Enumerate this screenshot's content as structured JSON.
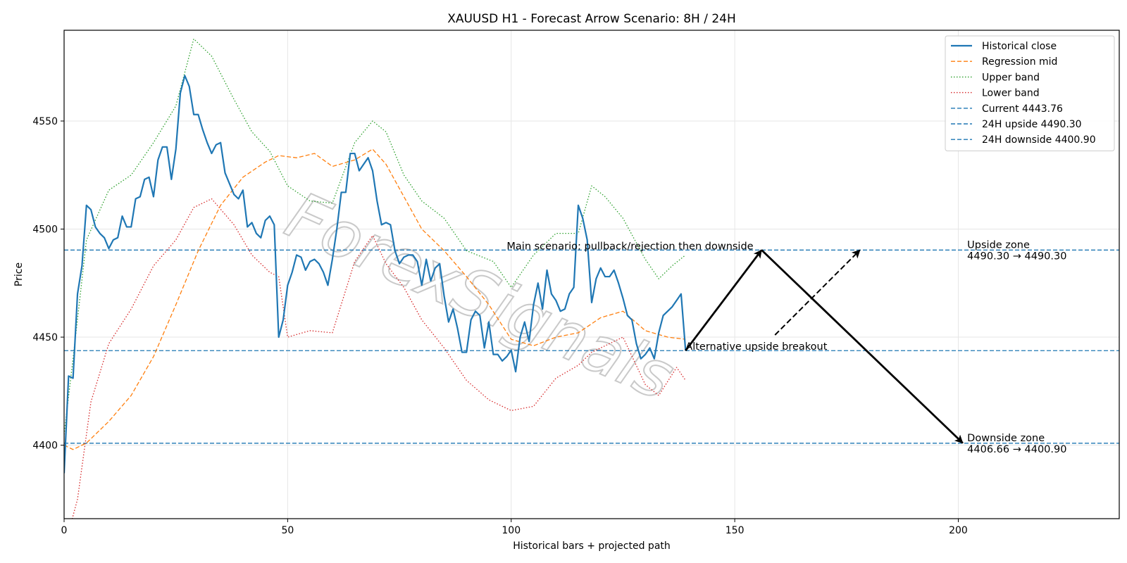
{
  "chart_data": {
    "type": "line",
    "title": "XAUUSD H1 - Forecast Arrow Scenario: 8H / 24H",
    "xlabel": "Historical bars + projected path",
    "ylabel": "Price",
    "xlim": [
      0,
      236
    ],
    "ylim": [
      4366,
      4592
    ],
    "xticks": [
      0,
      50,
      100,
      150,
      200
    ],
    "yticks": [
      4400,
      4450,
      4500,
      4550
    ],
    "grid": true,
    "legend_position": "top-right",
    "series": [
      {
        "name": "Historical close",
        "color": "#1f77b4",
        "style": "solid",
        "points": [
          [
            0,
            4387
          ],
          [
            1,
            4432
          ],
          [
            2,
            4431
          ],
          [
            3,
            4470
          ],
          [
            4,
            4483
          ],
          [
            5,
            4511
          ],
          [
            6,
            4509
          ],
          [
            7,
            4501
          ],
          [
            8,
            4498
          ],
          [
            9,
            4496
          ],
          [
            10,
            4491
          ],
          [
            11,
            4495
          ],
          [
            12,
            4496
          ],
          [
            13,
            4506
          ],
          [
            14,
            4501
          ],
          [
            15,
            4501
          ],
          [
            16,
            4514
          ],
          [
            17,
            4515
          ],
          [
            18,
            4523
          ],
          [
            19,
            4524
          ],
          [
            20,
            4515
          ],
          [
            21,
            4532
          ],
          [
            22,
            4538
          ],
          [
            23,
            4538
          ],
          [
            24,
            4523
          ],
          [
            25,
            4537
          ],
          [
            26,
            4563
          ],
          [
            27,
            4571
          ],
          [
            28,
            4566
          ],
          [
            29,
            4553
          ],
          [
            30,
            4553
          ],
          [
            31,
            4546
          ],
          [
            32,
            4540
          ],
          [
            33,
            4535
          ],
          [
            34,
            4539
          ],
          [
            35,
            4540
          ],
          [
            36,
            4526
          ],
          [
            37,
            4521
          ],
          [
            38,
            4516
          ],
          [
            39,
            4514
          ],
          [
            40,
            4518
          ],
          [
            41,
            4501
          ],
          [
            42,
            4503
          ],
          [
            43,
            4498
          ],
          [
            44,
            4496
          ],
          [
            45,
            4504
          ],
          [
            46,
            4506
          ],
          [
            47,
            4502
          ],
          [
            48,
            4450
          ],
          [
            49,
            4458
          ],
          [
            50,
            4474
          ],
          [
            51,
            4480
          ],
          [
            52,
            4488
          ],
          [
            53,
            4487
          ],
          [
            54,
            4481
          ],
          [
            55,
            4485
          ],
          [
            56,
            4486
          ],
          [
            57,
            4484
          ],
          [
            58,
            4480
          ],
          [
            59,
            4474
          ],
          [
            60,
            4486
          ],
          [
            61,
            4500
          ],
          [
            62,
            4517
          ],
          [
            63,
            4517
          ],
          [
            64,
            4535
          ],
          [
            65,
            4535
          ],
          [
            66,
            4527
          ],
          [
            67,
            4530
          ],
          [
            68,
            4533
          ],
          [
            69,
            4527
          ],
          [
            70,
            4513
          ],
          [
            71,
            4502
          ],
          [
            72,
            4503
          ],
          [
            73,
            4502
          ],
          [
            74,
            4490
          ],
          [
            75,
            4484
          ],
          [
            76,
            4487
          ],
          [
            77,
            4488
          ],
          [
            78,
            4488
          ],
          [
            79,
            4485
          ],
          [
            80,
            4474
          ],
          [
            81,
            4486
          ],
          [
            82,
            4476
          ],
          [
            83,
            4482
          ],
          [
            84,
            4484
          ],
          [
            85,
            4469
          ],
          [
            86,
            4457
          ],
          [
            87,
            4463
          ],
          [
            88,
            4454
          ],
          [
            89,
            4443
          ],
          [
            90,
            4443
          ],
          [
            91,
            4458
          ],
          [
            92,
            4462
          ],
          [
            93,
            4460
          ],
          [
            94,
            4445
          ],
          [
            95,
            4457
          ],
          [
            96,
            4442
          ],
          [
            97,
            4442
          ],
          [
            98,
            4439
          ],
          [
            99,
            4441
          ],
          [
            100,
            4444
          ],
          [
            101,
            4434
          ],
          [
            102,
            4450
          ],
          [
            103,
            4457
          ],
          [
            104,
            4448
          ],
          [
            105,
            4465
          ],
          [
            106,
            4475
          ],
          [
            107,
            4463
          ],
          [
            108,
            4481
          ],
          [
            109,
            4470
          ],
          [
            110,
            4467
          ],
          [
            111,
            4462
          ],
          [
            112,
            4463
          ],
          [
            113,
            4470
          ],
          [
            114,
            4473
          ],
          [
            115,
            4511
          ],
          [
            116,
            4505
          ],
          [
            117,
            4495
          ],
          [
            118,
            4466
          ],
          [
            119,
            4477
          ],
          [
            120,
            4482
          ],
          [
            121,
            4478
          ],
          [
            122,
            4478
          ],
          [
            123,
            4481
          ],
          [
            124,
            4475
          ],
          [
            125,
            4468
          ],
          [
            126,
            4460
          ],
          [
            127,
            4458
          ],
          [
            128,
            4447
          ],
          [
            129,
            4440
          ],
          [
            130,
            4442
          ],
          [
            131,
            4445
          ],
          [
            132,
            4440
          ],
          [
            133,
            4452
          ],
          [
            134,
            4460
          ],
          [
            135,
            4462
          ],
          [
            136,
            4464
          ],
          [
            137,
            4467
          ],
          [
            138,
            4470
          ],
          [
            139,
            4443.76
          ]
        ]
      },
      {
        "name": "Regression mid",
        "color": "#ff7f0e",
        "style": "dashed",
        "points": [
          [
            0,
            4400
          ],
          [
            2,
            4398
          ],
          [
            5,
            4401
          ],
          [
            10,
            4411
          ],
          [
            15,
            4423
          ],
          [
            20,
            4441
          ],
          [
            25,
            4465
          ],
          [
            30,
            4490
          ],
          [
            35,
            4511
          ],
          [
            40,
            4524
          ],
          [
            45,
            4531
          ],
          [
            48,
            4534
          ],
          [
            52,
            4533
          ],
          [
            56,
            4535
          ],
          [
            60,
            4529
          ],
          [
            65,
            4532
          ],
          [
            69,
            4537
          ],
          [
            72,
            4530
          ],
          [
            76,
            4515
          ],
          [
            80,
            4500
          ],
          [
            85,
            4490
          ],
          [
            90,
            4478
          ],
          [
            95,
            4465
          ],
          [
            100,
            4449
          ],
          [
            105,
            4446
          ],
          [
            110,
            4450
          ],
          [
            115,
            4452
          ],
          [
            120,
            4459
          ],
          [
            125,
            4462
          ],
          [
            130,
            4453
          ],
          [
            135,
            4450
          ],
          [
            139,
            4449
          ]
        ]
      },
      {
        "name": "Upper band",
        "color": "#2ca02c",
        "style": "dotted",
        "points": [
          [
            0,
            4405
          ],
          [
            2,
            4440
          ],
          [
            5,
            4495
          ],
          [
            10,
            4518
          ],
          [
            15,
            4525
          ],
          [
            20,
            4540
          ],
          [
            25,
            4557
          ],
          [
            29,
            4588
          ],
          [
            33,
            4580
          ],
          [
            38,
            4560
          ],
          [
            42,
            4545
          ],
          [
            46,
            4536
          ],
          [
            50,
            4520
          ],
          [
            55,
            4513
          ],
          [
            60,
            4512
          ],
          [
            65,
            4540
          ],
          [
            69,
            4550
          ],
          [
            72,
            4545
          ],
          [
            76,
            4525
          ],
          [
            80,
            4513
          ],
          [
            85,
            4505
          ],
          [
            90,
            4490
          ],
          [
            96,
            4485
          ],
          [
            100,
            4473
          ],
          [
            105,
            4488
          ],
          [
            110,
            4498
          ],
          [
            115,
            4498
          ],
          [
            118,
            4520
          ],
          [
            121,
            4515
          ],
          [
            125,
            4505
          ],
          [
            130,
            4486
          ],
          [
            133,
            4477
          ],
          [
            136,
            4483
          ],
          [
            139,
            4488
          ]
        ]
      },
      {
        "name": "Lower band",
        "color": "#d62728",
        "style": "dotted",
        "points": [
          [
            0,
            4352
          ],
          [
            3,
            4375
          ],
          [
            6,
            4420
          ],
          [
            10,
            4447
          ],
          [
            15,
            4463
          ],
          [
            20,
            4483
          ],
          [
            25,
            4495
          ],
          [
            29,
            4510
          ],
          [
            33,
            4514
          ],
          [
            38,
            4502
          ],
          [
            42,
            4488
          ],
          [
            46,
            4480
          ],
          [
            48,
            4478
          ],
          [
            50,
            4450
          ],
          [
            55,
            4453
          ],
          [
            60,
            4452
          ],
          [
            65,
            4485
          ],
          [
            69,
            4497
          ],
          [
            72,
            4484
          ],
          [
            76,
            4473
          ],
          [
            80,
            4458
          ],
          [
            85,
            4445
          ],
          [
            90,
            4430
          ],
          [
            95,
            4421
          ],
          [
            100,
            4416
          ],
          [
            105,
            4418
          ],
          [
            110,
            4431
          ],
          [
            115,
            4437
          ],
          [
            118,
            4443
          ],
          [
            122,
            4447
          ],
          [
            125,
            4450
          ],
          [
            130,
            4428
          ],
          [
            133,
            4423
          ],
          [
            137,
            4436
          ],
          [
            139,
            4430
          ]
        ]
      }
    ],
    "hlines": [
      {
        "name": "Current 4443.76",
        "y": 4443.76,
        "color": "#1f77b4"
      },
      {
        "name": "24H upside 4490.30",
        "y": 4490.3,
        "color": "#1f77b4"
      },
      {
        "name": "24H downside 4400.90",
        "y": 4400.9,
        "color": "#1f77b4"
      }
    ],
    "arrows": [
      {
        "from": [
          139,
          4443.76
        ],
        "to": [
          156,
          4490.3
        ],
        "style": "solid"
      },
      {
        "from": [
          156,
          4490.3
        ],
        "to": [
          201,
          4401
        ],
        "style": "solid"
      },
      {
        "from": [
          159,
          4451
        ],
        "to": [
          178,
          4490.3
        ],
        "style": "dashed"
      }
    ],
    "annotations": [
      {
        "id": "main",
        "text": "Main scenario: pullback/rejection then downside",
        "x": 99,
        "y": 4490.3
      },
      {
        "id": "alt",
        "text": "Alternative upside breakout",
        "x": 139,
        "y": 4443.76
      },
      {
        "id": "upzone",
        "lines": [
          "Upside zone",
          "4490.30 → 4490.30"
        ],
        "x": 202,
        "y": 4490.3
      },
      {
        "id": "downzone",
        "lines": [
          "Downside zone",
          "4406.66 → 4400.90"
        ],
        "x": 202,
        "y": 4400.9
      }
    ],
    "watermark": "ForexSignals"
  }
}
